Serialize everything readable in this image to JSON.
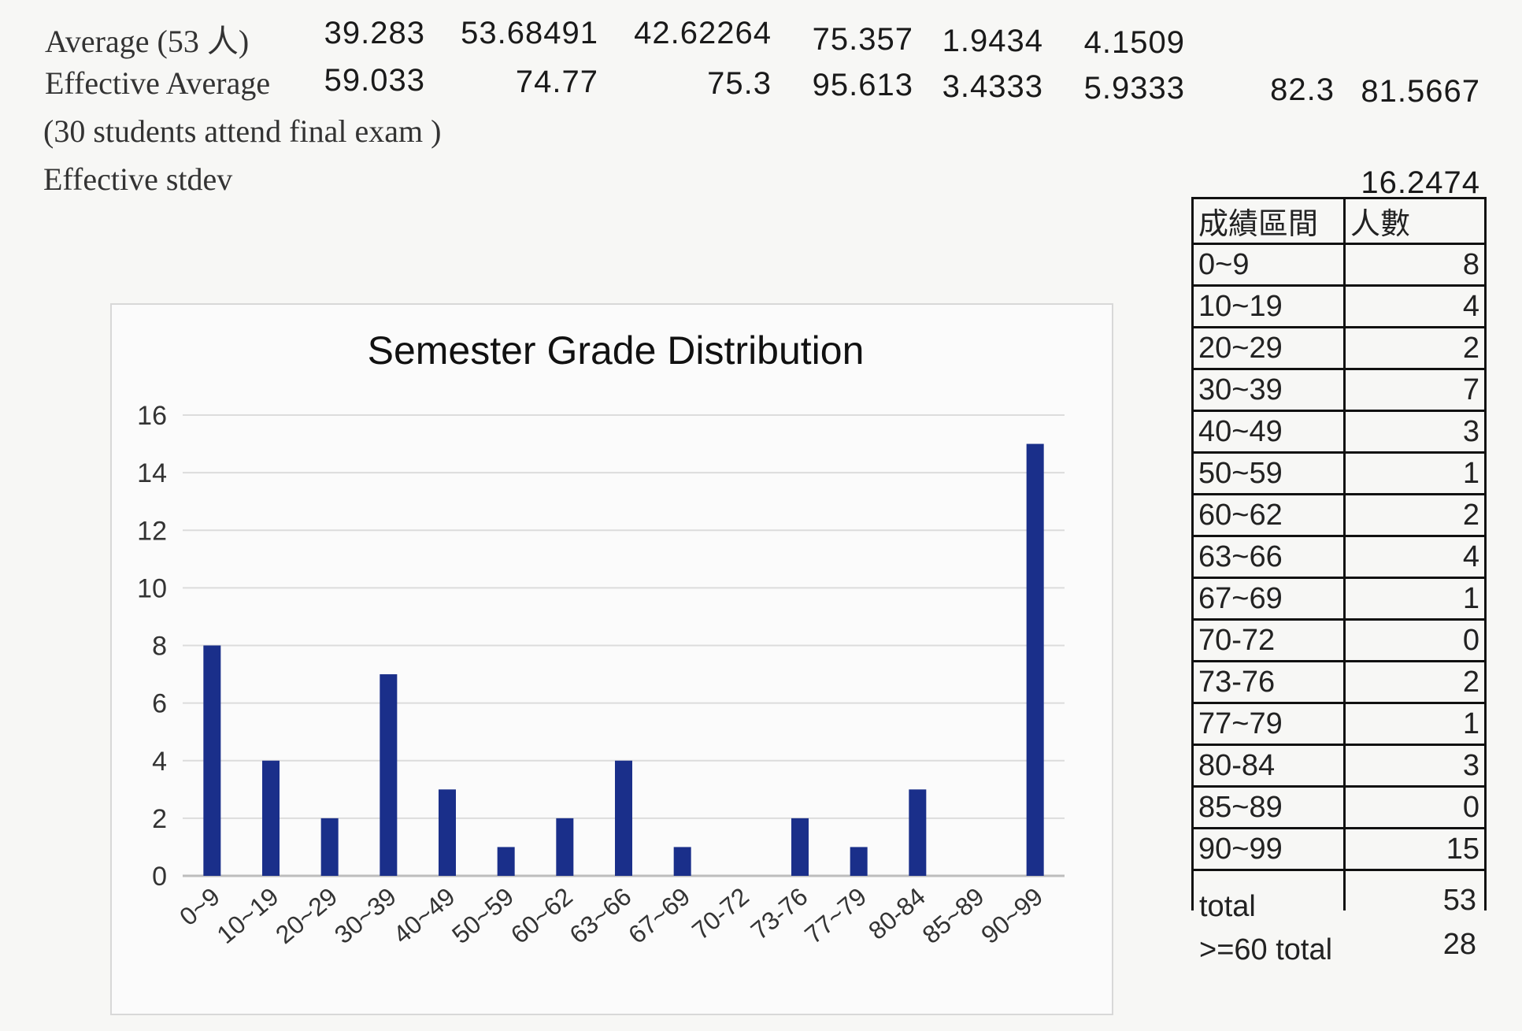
{
  "stats": {
    "average": {
      "label": "Average (53 人)",
      "values": [
        "39.283",
        "53.68491",
        "42.62264",
        "75.357",
        "1.9434",
        "4.1509"
      ]
    },
    "effective_average": {
      "label": "Effective Average",
      "values": [
        "59.033",
        "74.77",
        "75.3",
        "95.613",
        "3.4333",
        "5.9333",
        "82.3",
        "81.5667"
      ]
    },
    "note": "(30 students attend final exam )",
    "effective_stdev": {
      "label": "Effective stdev",
      "value": "16.2474"
    }
  },
  "chart_data": {
    "type": "bar",
    "title": "Semester Grade Distribution",
    "categories": [
      "0~9",
      "10~19",
      "20~29",
      "30~39",
      "40~49",
      "50~59",
      "60~62",
      "63~66",
      "67~69",
      "70-72",
      "73-76",
      "77~79",
      "80-84",
      "85~89",
      "90~99"
    ],
    "values": [
      8,
      4,
      2,
      7,
      3,
      1,
      2,
      4,
      1,
      0,
      2,
      1,
      3,
      0,
      15
    ],
    "ylim": [
      0,
      16
    ],
    "yticks": [
      "0",
      "2",
      "4",
      "6",
      "8",
      "10",
      "12",
      "14",
      "16"
    ],
    "grid": true,
    "bar_color": "#1a2f8a"
  },
  "table": {
    "headers": [
      "成績區間",
      "人數"
    ],
    "rows": [
      [
        "0~9",
        "8"
      ],
      [
        "10~19",
        "4"
      ],
      [
        "20~29",
        "2"
      ],
      [
        "30~39",
        "7"
      ],
      [
        "40~49",
        "3"
      ],
      [
        "50~59",
        "1"
      ],
      [
        "60~62",
        "2"
      ],
      [
        "63~66",
        "4"
      ],
      [
        "67~69",
        "1"
      ],
      [
        "70-72",
        "0"
      ],
      [
        "73-76",
        "2"
      ],
      [
        "77~79",
        "1"
      ],
      [
        "80-84",
        "3"
      ],
      [
        "85~89",
        "0"
      ],
      [
        "90~99",
        "15"
      ]
    ]
  },
  "totals": {
    "total_label": "total",
    "total_value": "53",
    "pass_label": ">=60 total",
    "pass_value": "28"
  }
}
